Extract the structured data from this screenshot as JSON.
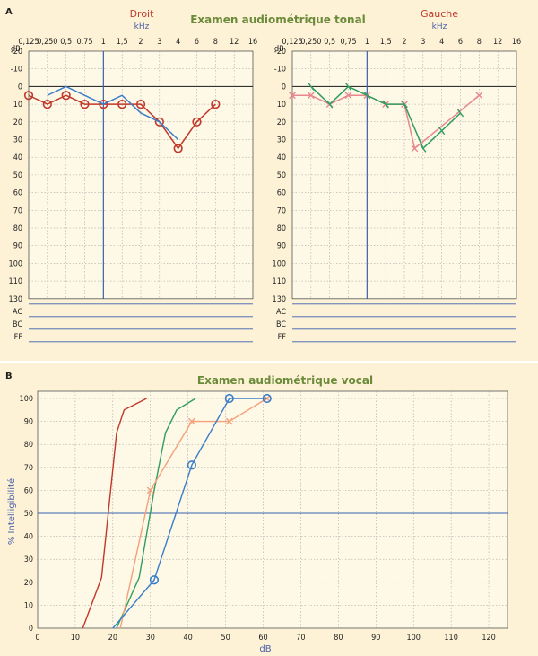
{
  "chart_data": [
    {
      "type": "line",
      "panel_label": "A",
      "title": "Examen audiométrique tonal",
      "side_label": "Droit",
      "x_unit": "kHz",
      "y_unit": "dB",
      "x_ticks": [
        "0,125",
        "0,250",
        "0,5",
        "0,75",
        "1",
        "1,5",
        "2",
        "3",
        "4",
        "6",
        "8",
        "12",
        "16"
      ],
      "y_ticks": [
        "-20",
        "-10",
        "0",
        "10",
        "20",
        "30",
        "40",
        "50",
        "60",
        "70",
        "80",
        "90",
        "100",
        "110",
        "130"
      ],
      "rows": [
        "AC",
        "BC",
        "FF"
      ],
      "reference_line_x": "1",
      "reference_line_y": 0,
      "series": [
        {
          "kind": "air",
          "marker": "circle",
          "color": "#c0392b",
          "x": [
            "0,125",
            "0,250",
            "0,5",
            "0,75",
            "1",
            "1,5",
            "2",
            "3",
            "4",
            "6",
            "8"
          ],
          "y": [
            5,
            10,
            5,
            10,
            10,
            10,
            10,
            20,
            35,
            20,
            10
          ]
        },
        {
          "kind": "bone",
          "marker": "none",
          "color": "#3a7dc9",
          "x": [
            "0,250",
            "0,5",
            "1",
            "1,5",
            "2",
            "3",
            "4"
          ],
          "y": [
            5,
            0,
            10,
            5,
            15,
            20,
            30
          ]
        }
      ]
    },
    {
      "type": "line",
      "title": "",
      "side_label": "Gauche",
      "x_unit": "kHz",
      "y_unit": "dB",
      "x_ticks": [
        "0,125",
        "0,250",
        "0,5",
        "0,75",
        "1",
        "1,5",
        "2",
        "3",
        "4",
        "6",
        "8",
        "12",
        "16"
      ],
      "y_ticks": [
        "-20",
        "-10",
        "0",
        "10",
        "20",
        "30",
        "40",
        "50",
        "60",
        "70",
        "80",
        "90",
        "100",
        "110",
        "130"
      ],
      "rows": [
        "AC",
        "BC",
        "FF"
      ],
      "reference_line_x": "1",
      "reference_line_y": 0,
      "series": [
        {
          "kind": "air",
          "marker": "x",
          "color": "#e8888e",
          "x": [
            "0,125",
            "0,250",
            "0,5",
            "0,75",
            "1",
            "1,5",
            "2",
            "2,5",
            "8"
          ],
          "y": [
            5,
            5,
            10,
            5,
            5,
            10,
            10,
            35,
            5
          ]
        },
        {
          "kind": "bone",
          "marker": "tick",
          "color": "#2f9e5f",
          "x": [
            "0,250",
            "0,5",
            "0,75",
            "1",
            "1,5",
            "2",
            "3",
            "4",
            "6"
          ],
          "y": [
            0,
            10,
            0,
            5,
            10,
            10,
            35,
            25,
            15
          ]
        }
      ]
    },
    {
      "type": "line",
      "panel_label": "B",
      "title": "Examen audiométrique vocal",
      "xlabel": "dB",
      "ylabel": "% Intelligibilité",
      "xlim": [
        0,
        125
      ],
      "ylim": [
        0,
        100
      ],
      "x_ticks": [
        0,
        10,
        20,
        30,
        40,
        50,
        60,
        70,
        80,
        90,
        100,
        110,
        120
      ],
      "y_ticks": [
        0,
        10,
        20,
        30,
        40,
        50,
        60,
        70,
        80,
        90,
        100
      ],
      "reference_line_y": 50,
      "series": [
        {
          "color": "#c0392b",
          "marker": "none",
          "x": [
            12,
            17,
            21,
            23,
            29
          ],
          "y": [
            0,
            22,
            85,
            95,
            100
          ]
        },
        {
          "color": "#2f9e5f",
          "marker": "none",
          "x": [
            21,
            27,
            31,
            34,
            37,
            42
          ],
          "y": [
            0,
            22,
            60,
            85,
            95,
            100
          ]
        },
        {
          "color": "#f4a07a",
          "marker": "x",
          "x": [
            22,
            30,
            41,
            51,
            61
          ],
          "y": [
            0,
            60,
            90,
            90,
            100
          ]
        },
        {
          "color": "#3a7dc9",
          "marker": "circle",
          "x": [
            20,
            31,
            41,
            51,
            61
          ],
          "y": [
            0,
            21,
            71,
            100,
            100
          ]
        }
      ]
    }
  ]
}
